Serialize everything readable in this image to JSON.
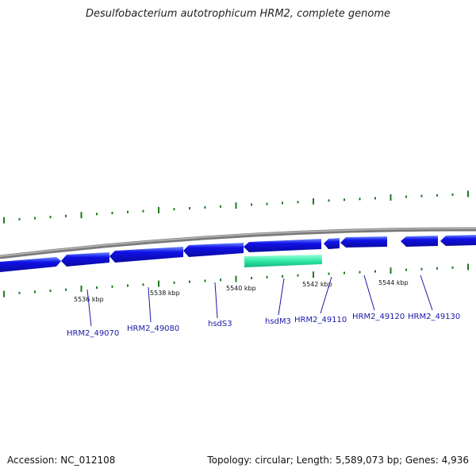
{
  "title": "Desulfobacterium autotrophicum HRM2, complete genome",
  "footer": {
    "accession": "Accession: NC_012108",
    "summary": "Topology: circular; Length: 5,589,073 bp; Genes: 4,936"
  },
  "scale_labels": [
    "5536 kbp",
    "5538 kbp",
    "5540 kbp",
    "5542 kbp",
    "5544 kbp"
  ],
  "genes": [
    {
      "name": "HRM2_49070"
    },
    {
      "name": "HRM2_49080"
    },
    {
      "name": "hsdS3"
    },
    {
      "name": "hsdM3"
    },
    {
      "name": "HRM2_49110"
    },
    {
      "name": "HRM2_49120"
    },
    {
      "name": "HRM2_49130"
    }
  ],
  "colors": {
    "gene": "#1010e6",
    "gene_highlight": "#7de8ff",
    "selected_gene": "#2ee8a6",
    "ticks": "#1f7a1f",
    "backbone": "#888888",
    "label": "#1a1aa8"
  }
}
